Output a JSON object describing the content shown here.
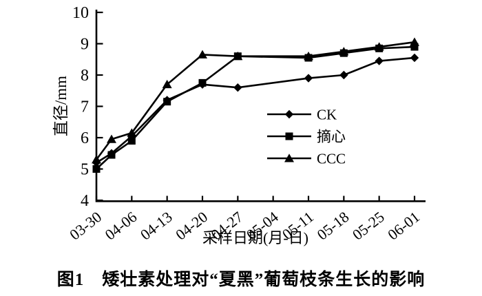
{
  "caption": "图1　矮壮素处理对“夏黑”葡萄枝条生长的影响",
  "chart_data": {
    "type": "line",
    "ylabel": "直径/mm",
    "xlabel": "采样日期(月-日)",
    "ylim": [
      4,
      10
    ],
    "y_ticks": [
      4,
      5,
      6,
      7,
      8,
      9,
      10
    ],
    "x_tick_labels": [
      "03-30",
      "04-06",
      "04-13",
      "04-20",
      "04-27",
      "05-04",
      "05-11",
      "05-18",
      "05-25",
      "06-01"
    ],
    "x_dates": [
      "03-30",
      "04-02",
      "04-06",
      "04-13",
      "04-20",
      "04-27",
      "05-11",
      "05-18",
      "05-25",
      "06-01"
    ],
    "x_days": [
      0,
      3,
      7,
      14,
      21,
      28,
      42,
      49,
      56,
      63
    ],
    "grid": "off",
    "legend_position": "inside-middle-right",
    "line_color": "#000000",
    "background_color": "#ffffff",
    "series": [
      {
        "name": "CK",
        "marker": "diamond",
        "values": [
          5.2,
          5.5,
          6.05,
          7.2,
          7.7,
          7.6,
          7.9,
          8.0,
          8.45,
          8.55
        ]
      },
      {
        "name": "摘心",
        "marker": "square",
        "values": [
          5.0,
          5.45,
          5.9,
          7.15,
          7.75,
          8.6,
          8.55,
          8.7,
          8.85,
          8.9
        ]
      },
      {
        "name": "CCC",
        "marker": "triangle",
        "values": [
          5.3,
          5.95,
          6.15,
          7.7,
          8.65,
          8.6,
          8.6,
          8.75,
          8.9,
          9.05
        ]
      }
    ]
  }
}
